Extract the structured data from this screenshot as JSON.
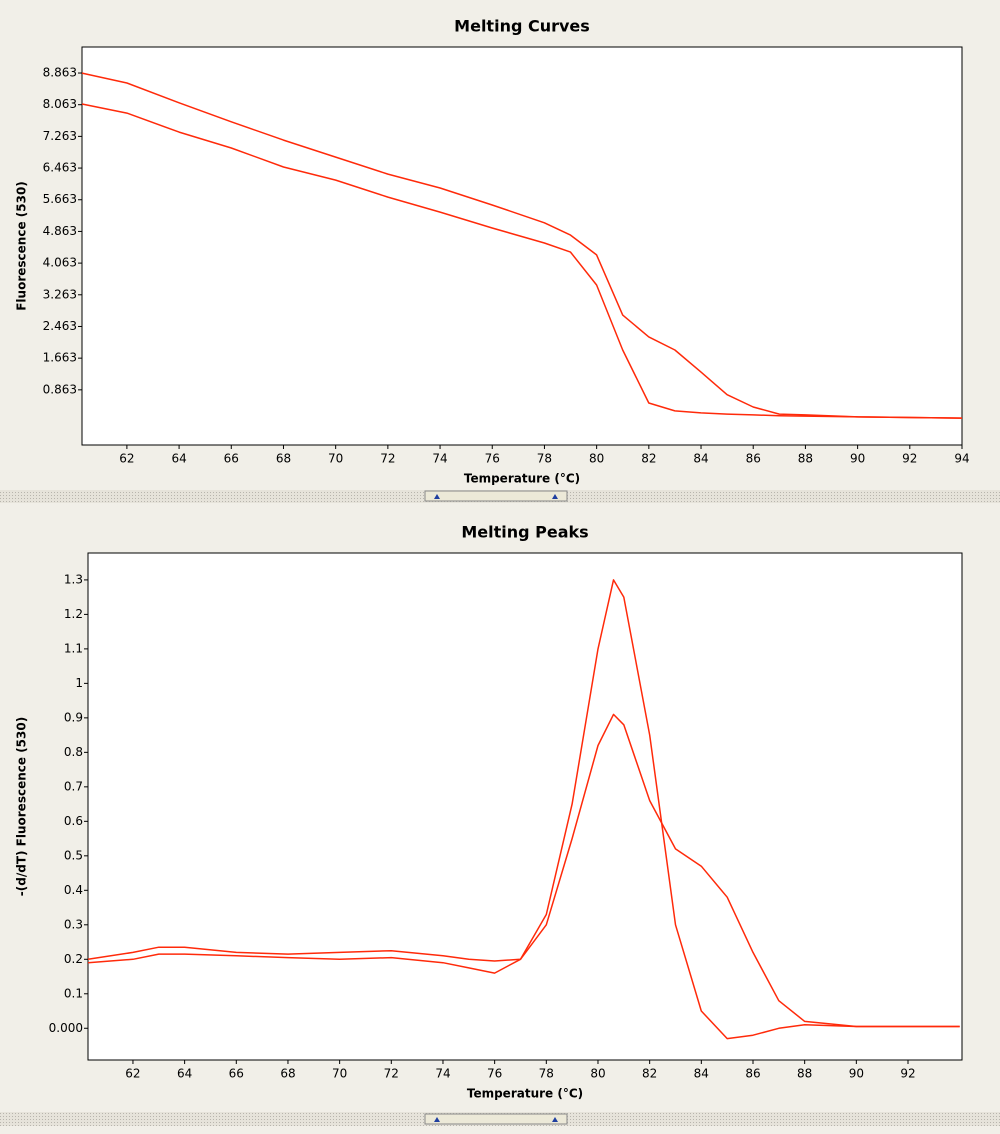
{
  "chart_data": [
    {
      "type": "line",
      "title": "Melting Curves",
      "x_label": "Temperature (°C)",
      "y_label": "Fluorescence (530)",
      "x": [
        60.28,
        62,
        64,
        66,
        68,
        70,
        72,
        74,
        76,
        78,
        79,
        80,
        81,
        82,
        83,
        84,
        85,
        86,
        87,
        88,
        90,
        94
      ],
      "series": [
        {
          "color": "#ff2a0a",
          "values": [
            8.86,
            8.61,
            8.11,
            7.63,
            7.17,
            6.74,
            6.31,
            5.96,
            5.53,
            5.08,
            4.77,
            4.27,
            2.75,
            2.2,
            1.87,
            1.31,
            0.74,
            0.43,
            0.25,
            0.23,
            0.18,
            0.15
          ]
        },
        {
          "color": "#ff2a0a",
          "values": [
            8.08,
            7.85,
            7.37,
            6.97,
            6.49,
            6.16,
            5.73,
            5.35,
            4.95,
            4.57,
            4.34,
            3.51,
            1.87,
            0.53,
            0.33,
            0.28,
            0.25,
            0.23,
            0.21,
            0.2,
            0.18,
            0.15
          ]
        }
      ],
      "xlim": [
        60.28,
        94
      ],
      "xticks": [
        62,
        64,
        66,
        68,
        70,
        72,
        74,
        76,
        78,
        80,
        82,
        84,
        86,
        88,
        90,
        92,
        94
      ],
      "ylim": [
        -0.53,
        9.52
      ],
      "yticks": [
        0.863,
        1.663,
        2.463,
        3.263,
        4.063,
        4.863,
        5.663,
        6.463,
        7.263,
        8.063,
        8.863
      ]
    },
    {
      "type": "line",
      "title": "Melting Peaks",
      "x_label": "Temperature (°C)",
      "y_label": "-(d/dT) Fluorescence (530)",
      "x": [
        60.26,
        62,
        63,
        64,
        66,
        68,
        70,
        72,
        74,
        75,
        76,
        77,
        78,
        79,
        80,
        80.6,
        81,
        82,
        83,
        84,
        85,
        86,
        87,
        88,
        90,
        94
      ],
      "series": [
        {
          "color": "#ff2a0a",
          "values": [
            0.19,
            0.2,
            0.215,
            0.215,
            0.21,
            0.205,
            0.2,
            0.205,
            0.19,
            0.175,
            0.16,
            0.2,
            0.33,
            0.65,
            1.1,
            1.3,
            1.25,
            0.85,
            0.3,
            0.05,
            -0.03,
            -0.02,
            0,
            0.01,
            0.005,
            0.005
          ]
        },
        {
          "color": "#ff2a0a",
          "values": [
            0.2,
            0.22,
            0.235,
            0.235,
            0.22,
            0.215,
            0.22,
            0.225,
            0.21,
            0.2,
            0.195,
            0.2,
            0.3,
            0.55,
            0.82,
            0.91,
            0.88,
            0.66,
            0.52,
            0.47,
            0.38,
            0.22,
            0.08,
            0.02,
            0.005,
            0.005
          ]
        }
      ],
      "xlim": [
        60.26,
        94.09
      ],
      "xticks": [
        62,
        64,
        66,
        68,
        70,
        72,
        74,
        76,
        78,
        80,
        82,
        84,
        86,
        88,
        90,
        92
      ],
      "ylim": [
        -0.092,
        1.378
      ],
      "yticks": [
        {
          "value": 0,
          "label": "0.000"
        },
        0.1,
        0.2,
        0.3,
        0.4,
        0.5,
        0.6,
        0.7,
        0.8,
        0.9,
        1,
        1.1,
        1.2,
        1.3
      ]
    }
  ]
}
